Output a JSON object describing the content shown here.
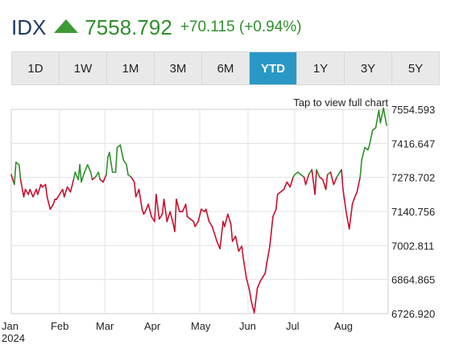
{
  "header": {
    "ticker": "IDX",
    "price": "7558.792",
    "change": "+70.115 (+0.94%)",
    "trend_icon": "triangle-up-icon",
    "color_up": "#2f8f2c",
    "color_down": "#c8102e"
  },
  "tabs": [
    {
      "label": "1D",
      "active": false
    },
    {
      "label": "1W",
      "active": false
    },
    {
      "label": "1M",
      "active": false
    },
    {
      "label": "3M",
      "active": false
    },
    {
      "label": "6M",
      "active": false
    },
    {
      "label": "YTD",
      "active": true
    },
    {
      "label": "1Y",
      "active": false
    },
    {
      "label": "3Y",
      "active": false
    },
    {
      "label": "5Y",
      "active": false
    }
  ],
  "hint": "Tap to view full chart",
  "chart_data": {
    "type": "line",
    "reference_value": 7278.702,
    "ylim": [
      6726.92,
      7554.593
    ],
    "y_ticks": [
      "7554.593",
      "7416.647",
      "7278.702",
      "7140.756",
      "7002.811",
      "6864.865",
      "6726.920"
    ],
    "x_labels": [
      {
        "label": "Jan",
        "sub": "2024",
        "t": 0
      },
      {
        "label": "Feb",
        "sub": "",
        "t": 31
      },
      {
        "label": "Mar",
        "sub": "",
        "t": 60
      },
      {
        "label": "Apr",
        "sub": "",
        "t": 91
      },
      {
        "label": "May",
        "sub": "",
        "t": 121
      },
      {
        "label": "Jun",
        "sub": "",
        "t": 152
      },
      {
        "label": "Jul",
        "sub": "",
        "t": 182
      },
      {
        "label": "Aug",
        "sub": "",
        "t": 213
      }
    ],
    "t_range": [
      0,
      242
    ],
    "t": [
      0,
      2,
      3,
      5,
      6,
      8,
      9,
      11,
      12,
      14,
      16,
      17,
      19,
      20,
      22,
      23,
      25,
      27,
      28,
      29,
      31,
      33,
      34,
      36,
      38,
      40,
      41,
      43,
      44,
      45,
      47,
      49,
      51,
      52,
      54,
      56,
      57,
      59,
      61,
      62,
      63,
      65,
      67,
      68,
      70,
      72,
      74,
      75,
      77,
      79,
      80,
      82,
      84,
      85,
      86,
      88,
      90,
      92,
      93,
      95,
      97,
      98,
      100,
      102,
      104,
      105,
      106,
      108,
      110,
      112,
      113,
      115,
      117,
      118,
      120,
      122,
      124,
      125,
      127,
      129,
      131,
      132,
      134,
      136,
      137,
      139,
      141,
      142,
      144,
      146,
      148,
      149,
      151,
      153,
      154,
      156,
      158,
      160,
      161,
      163,
      164,
      166,
      168,
      170,
      171,
      173,
      175,
      177,
      179,
      181,
      182,
      184,
      186,
      188,
      189,
      191,
      193,
      195,
      196,
      198,
      200,
      202,
      203,
      205,
      207,
      209,
      210,
      212,
      213,
      215,
      217,
      219,
      220,
      222,
      224,
      225,
      227,
      229,
      230,
      232,
      234,
      236,
      237,
      239,
      241
    ],
    "values": [
      7290,
      7250,
      7340,
      7330,
      7270,
      7200,
      7230,
      7210,
      7230,
      7200,
      7230,
      7210,
      7250,
      7240,
      7250,
      7200,
      7150,
      7170,
      7190,
      7190,
      7210,
      7230,
      7200,
      7240,
      7220,
      7270,
      7300,
      7270,
      7330,
      7260,
      7300,
      7330,
      7300,
      7270,
      7280,
      7300,
      7270,
      7260,
      7290,
      7360,
      7380,
      7300,
      7300,
      7400,
      7410,
      7350,
      7330,
      7290,
      7280,
      7260,
      7200,
      7230,
      7150,
      7130,
      7140,
      7170,
      7120,
      7100,
      7210,
      7110,
      7130,
      7190,
      7100,
      7140,
      7090,
      7060,
      7190,
      7140,
      7140,
      7170,
      7120,
      7110,
      7100,
      7080,
      7100,
      7150,
      7140,
      7150,
      7100,
      7080,
      7040,
      7020,
      6990,
      7100,
      7080,
      7130,
      7090,
      7020,
      7040,
      6980,
      7000,
      6950,
      6870,
      6820,
      6780,
      6730,
      6830,
      6860,
      6870,
      6890,
      6930,
      7000,
      7120,
      7150,
      7210,
      7220,
      7230,
      7260,
      7240,
      7280,
      7290,
      7300,
      7290,
      7280,
      7250,
      7290,
      7310,
      7210,
      7310,
      7280,
      7270,
      7230,
      7290,
      7300,
      7250,
      7280,
      7290,
      7310,
      7230,
      7140,
      7070,
      7170,
      7190,
      7220,
      7280,
      7350,
      7400,
      7390,
      7410,
      7470,
      7480,
      7550,
      7500,
      7560,
      7490
    ]
  }
}
